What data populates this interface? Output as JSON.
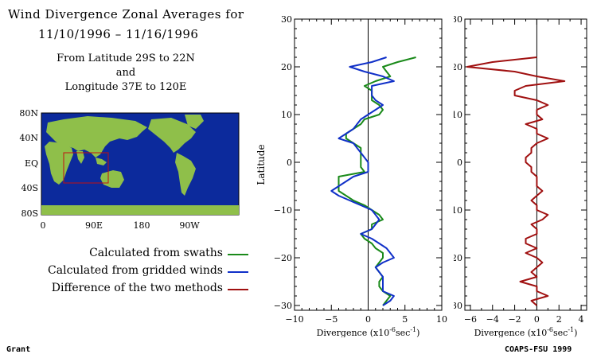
{
  "title_line1": "Wind Divergence Zonal Averages for",
  "title_line2": "11/10/1996 – 11/16/1996",
  "region_line1": "From Latitude 29S to 22N",
  "region_line2": "and",
  "region_line3": "Longitude 37E to 120E",
  "map": {
    "y_labels": [
      "80N",
      "40N",
      "EQ",
      "40S",
      "80S"
    ],
    "x_labels": [
      "0",
      "90E",
      "180",
      "90W"
    ],
    "colors": {
      "ocean": "#0c2a9c",
      "land": "#8fbf4a",
      "box": "#c01010"
    }
  },
  "legend": [
    {
      "label": "Calculated from swaths",
      "color": "#1a8a1a"
    },
    {
      "label": "Calculated from gridded winds",
      "color": "#1030c8"
    },
    {
      "label": "Difference of the two methods",
      "color": "#a01010"
    }
  ],
  "footer_left": "Grant",
  "footer_right": "COAPS-FSU 1999",
  "chart_data": [
    {
      "type": "line",
      "ylabel": "Latitude",
      "xlabel": "Divergence (x10",
      "xlabel_exp": "-6",
      "xlabel_unit": "sec",
      "xlabel_exp2": "-1",
      "xlim": [
        -10,
        10
      ],
      "ylim": [
        -31,
        30
      ],
      "x_ticks": [
        "−10",
        "−5",
        "0",
        "5",
        "10"
      ],
      "y_ticks": [
        "−30",
        "−20",
        "−10",
        "0",
        "10",
        "20",
        "30"
      ],
      "lat": [
        22,
        21,
        20,
        19,
        18,
        17,
        16,
        15,
        14,
        13,
        12,
        11,
        10,
        9,
        8,
        7,
        6,
        5,
        4,
        3,
        2,
        1,
        0,
        -1,
        -2,
        -3,
        -4,
        -5,
        -6,
        -7,
        -8,
        -9,
        -10,
        -11,
        -12,
        -13,
        -14,
        -15,
        -16,
        -17,
        -18,
        -19,
        -20,
        -21,
        -22,
        -23,
        -24,
        -25,
        -26,
        -27,
        -28,
        -29,
        -30
      ],
      "series": [
        {
          "name": "Calculated from swaths",
          "color": "#1a8a1a",
          "values": [
            6.5,
            4,
            2,
            2.5,
            3,
            1,
            -0.5,
            0.5,
            0.5,
            0.5,
            1.5,
            2,
            1.5,
            -0.5,
            -1,
            -2,
            -3,
            -3,
            -2,
            -1,
            -1,
            -1,
            -1,
            -1,
            -0.5,
            -4,
            -4,
            -4,
            -4,
            -3,
            -2,
            -0.5,
            0.5,
            1.5,
            2,
            0.5,
            0.5,
            -1,
            -0.5,
            0.5,
            1,
            2,
            2,
            1.5,
            1,
            1.5,
            2,
            1.5,
            1.5,
            2,
            3,
            2.5,
            2
          ]
        },
        {
          "name": "Calculated from gridded winds",
          "color": "#1030c8",
          "values": [
            2.5,
            0.5,
            -2.5,
            -0.5,
            2,
            3.5,
            0.5,
            0.5,
            0.5,
            1,
            2,
            1,
            0,
            -1,
            -1.5,
            -2,
            -3,
            -4,
            -2,
            -1.5,
            -1,
            -0.5,
            0,
            0,
            0,
            -2,
            -3,
            -4,
            -5,
            -4,
            -2.5,
            -1,
            0.5,
            1,
            1.5,
            1,
            0.5,
            -1,
            0.5,
            1.5,
            2.5,
            3,
            3.5,
            2,
            1,
            1.5,
            2,
            2,
            2,
            2,
            3.5,
            3,
            2
          ]
        }
      ]
    },
    {
      "type": "line",
      "xlabel": "Divergence (x10",
      "xlabel_exp": "-6",
      "xlabel_unit": "sec",
      "xlabel_exp2": "-1",
      "xlim": [
        -6.5,
        4.5
      ],
      "ylim": [
        -31,
        30
      ],
      "x_ticks": [
        "−6",
        "−4",
        "−2",
        "0",
        "2",
        "4"
      ],
      "y_ticks": [
        "−30",
        "−20",
        "−10",
        "0",
        "10",
        "20",
        "30"
      ],
      "lat": [
        22,
        21,
        20,
        19,
        18,
        17,
        16,
        15,
        14,
        13,
        12,
        11,
        10,
        9,
        8,
        7,
        6,
        5,
        4,
        3,
        2,
        1,
        0,
        -1,
        -2,
        -3,
        -4,
        -5,
        -6,
        -7,
        -8,
        -9,
        -10,
        -11,
        -12,
        -13,
        -14,
        -15,
        -16,
        -17,
        -18,
        -19,
        -20,
        -21,
        -22,
        -23,
        -24,
        -25,
        -26,
        -27,
        -28,
        -29,
        -30
      ],
      "series": [
        {
          "name": "Difference of the two methods",
          "color": "#a01010",
          "values": [
            0,
            -4,
            -6.3,
            -2,
            0,
            2.5,
            -1,
            -2,
            -2,
            0,
            1,
            0,
            0,
            0.5,
            -1,
            0,
            0,
            1,
            0,
            -0.5,
            -0.5,
            -1,
            -1,
            -0.5,
            -0.5,
            0,
            0,
            0,
            0.5,
            0,
            -0.5,
            0,
            0,
            1,
            0.5,
            -0.5,
            0,
            0,
            -1,
            -1,
            0,
            -1,
            0,
            0.5,
            0,
            -0.5,
            0,
            -1.5,
            0,
            0,
            1,
            -0.5,
            0
          ]
        }
      ]
    }
  ]
}
